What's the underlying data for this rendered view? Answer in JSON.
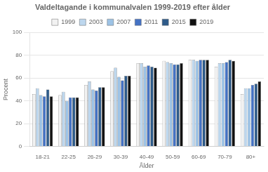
{
  "chart_data": {
    "type": "bar",
    "title": "Valdeltagande i kommunalvalen 1999-2019 efter ålder",
    "ylabel": "Procent",
    "xlabel": "Ålder",
    "categories": [
      "18-21",
      "22-25",
      "26-29",
      "30-39",
      "40-49",
      "50-59",
      "60-69",
      "70-79",
      "80+"
    ],
    "series": [
      {
        "name": "1999",
        "color": "#f2f2f2",
        "values": [
          46,
          45,
          54,
          66,
          73,
          75,
          76,
          70,
          46
        ]
      },
      {
        "name": "2003",
        "color": "#bdd7ee",
        "values": [
          51,
          48,
          57,
          69,
          73,
          74,
          76,
          73,
          51
        ]
      },
      {
        "name": "2007",
        "color": "#9dc3e6",
        "values": [
          45,
          40,
          50,
          61,
          70,
          73,
          75,
          73,
          51
        ]
      },
      {
        "name": "2011",
        "color": "#4472c4",
        "values": [
          44,
          43,
          49,
          58,
          71,
          72,
          76,
          74,
          54
        ]
      },
      {
        "name": "2015",
        "color": "#2e5b8a",
        "values": [
          50,
          43,
          52,
          62,
          70,
          72,
          76,
          76,
          55
        ]
      },
      {
        "name": "2019",
        "color": "#111111",
        "values": [
          44,
          43,
          52,
          62,
          69,
          73,
          76,
          75,
          57
        ]
      }
    ],
    "ylim": [
      0,
      100
    ],
    "yticks": [
      0,
      20,
      40,
      60,
      80,
      100
    ],
    "grid": true,
    "legend": "top"
  }
}
